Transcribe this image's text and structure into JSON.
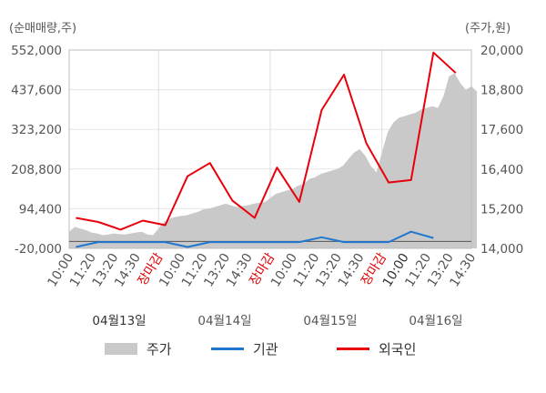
{
  "units": {
    "left": "(순매매량,주)",
    "right": "(주가,원)"
  },
  "chart_data": {
    "type": "line",
    "left_axis": {
      "ticks": [
        "552,000",
        "437,600",
        "323,200",
        "208,800",
        "94,400",
        "-20,000"
      ],
      "min": -20000,
      "max": 552000
    },
    "right_axis": {
      "ticks": [
        "20,000",
        "18,800",
        "17,600",
        "16,400",
        "15,200",
        "14,000"
      ],
      "min": 14000,
      "max": 20000
    },
    "x_ticks": [
      {
        "label": "10:00",
        "color": "#555555"
      },
      {
        "label": "11:20",
        "color": "#555555"
      },
      {
        "label": "13:20",
        "color": "#555555"
      },
      {
        "label": "14:30",
        "color": "#555555"
      },
      {
        "label": "장마감",
        "color": "#e00000"
      },
      {
        "label": "10:00",
        "color": "#555555"
      },
      {
        "label": "11:20",
        "color": "#555555"
      },
      {
        "label": "13:20",
        "color": "#555555"
      },
      {
        "label": "14:30",
        "color": "#555555"
      },
      {
        "label": "장마감",
        "color": "#e00000"
      },
      {
        "label": "10:00",
        "color": "#555555"
      },
      {
        "label": "11:20",
        "color": "#555555"
      },
      {
        "label": "13:20",
        "color": "#555555"
      },
      {
        "label": "14:30",
        "color": "#555555"
      },
      {
        "label": "장마감",
        "color": "#e00000"
      },
      {
        "label": "10:00",
        "color": "#333333"
      },
      {
        "label": "11:20",
        "color": "#555555"
      },
      {
        "label": "13:20",
        "color": "#555555"
      },
      {
        "label": "14:30",
        "color": "#555555"
      }
    ],
    "dates": [
      "04월13일",
      "04월14일",
      "04월15일",
      "04월16일"
    ],
    "session_breaks": [
      4,
      9,
      14
    ],
    "price_series": {
      "name": "주가",
      "values": [
        [
          0,
          14500
        ],
        [
          0.25,
          14650
        ],
        [
          0.5,
          14600
        ],
        [
          0.75,
          14550
        ],
        [
          1.0,
          14480
        ],
        [
          1.25,
          14450
        ],
        [
          1.5,
          14400
        ],
        [
          1.75,
          14420
        ],
        [
          2.0,
          14450
        ],
        [
          2.25,
          14430
        ],
        [
          2.5,
          14420
        ],
        [
          2.75,
          14450
        ],
        [
          3.0,
          14480
        ],
        [
          3.25,
          14500
        ],
        [
          3.5,
          14420
        ],
        [
          3.75,
          14400
        ],
        [
          4.25,
          14800
        ],
        [
          4.5,
          14900
        ],
        [
          4.75,
          14950
        ],
        [
          5.0,
          14980
        ],
        [
          5.25,
          15000
        ],
        [
          5.5,
          15050
        ],
        [
          5.75,
          15100
        ],
        [
          6.0,
          15180
        ],
        [
          6.25,
          15200
        ],
        [
          6.5,
          15250
        ],
        [
          6.75,
          15300
        ],
        [
          7.0,
          15350
        ],
        [
          7.25,
          15300
        ],
        [
          7.5,
          15250
        ],
        [
          7.75,
          15280
        ],
        [
          8.0,
          15300
        ],
        [
          8.25,
          15350
        ],
        [
          8.5,
          15380
        ],
        [
          8.75,
          15400
        ],
        [
          9.25,
          15650
        ],
        [
          9.5,
          15700
        ],
        [
          9.75,
          15750
        ],
        [
          10.0,
          15800
        ],
        [
          10.25,
          15900
        ],
        [
          10.5,
          15950
        ],
        [
          10.75,
          16100
        ],
        [
          11.0,
          16150
        ],
        [
          11.25,
          16250
        ],
        [
          11.5,
          16300
        ],
        [
          11.75,
          16350
        ],
        [
          12.0,
          16400
        ],
        [
          12.25,
          16500
        ],
        [
          12.5,
          16700
        ],
        [
          12.75,
          16900
        ],
        [
          13.0,
          17000
        ],
        [
          13.25,
          16800
        ],
        [
          13.5,
          16500
        ],
        [
          13.75,
          16300
        ],
        [
          14.25,
          17500
        ],
        [
          14.5,
          17800
        ],
        [
          14.75,
          17950
        ],
        [
          15.0,
          18000
        ],
        [
          15.25,
          18050
        ],
        [
          15.5,
          18100
        ],
        [
          15.75,
          18200
        ],
        [
          16.0,
          18250
        ],
        [
          16.25,
          18300
        ],
        [
          16.5,
          18250
        ],
        [
          16.75,
          18600
        ],
        [
          17.0,
          19200
        ],
        [
          17.25,
          19300
        ],
        [
          17.5,
          19000
        ],
        [
          17.75,
          18800
        ],
        [
          18.0,
          18900
        ],
        [
          18.25,
          18750
        ]
      ]
    },
    "series": [
      {
        "name": "기관",
        "color": "#1f77d0",
        "values": [
          [
            0.3,
            -16000
          ],
          [
            1.3,
            -2000
          ],
          [
            2.3,
            -2000
          ],
          [
            3.3,
            -2000
          ],
          [
            4.3,
            -2000
          ],
          [
            5.3,
            -16000
          ],
          [
            6.3,
            -2000
          ],
          [
            7.3,
            -2000
          ],
          [
            8.3,
            -2000
          ],
          [
            9.3,
            -2000
          ],
          [
            10.3,
            -2000
          ],
          [
            11.3,
            12000
          ],
          [
            12.3,
            -2000
          ],
          [
            13.3,
            -2000
          ],
          [
            14.3,
            -2000
          ],
          [
            15.3,
            28000
          ],
          [
            16.3,
            10000
          ]
        ]
      },
      {
        "name": "외국인",
        "color": "#e8000b",
        "values": [
          [
            0.3,
            68000
          ],
          [
            1.3,
            56000
          ],
          [
            2.3,
            34000
          ],
          [
            3.3,
            60000
          ],
          [
            4.3,
            47000
          ],
          [
            5.3,
            188000
          ],
          [
            6.3,
            226000
          ],
          [
            7.3,
            118000
          ],
          [
            8.3,
            68000
          ],
          [
            9.3,
            213000
          ],
          [
            10.3,
            114000
          ],
          [
            11.3,
            379000
          ],
          [
            12.3,
            481000
          ],
          [
            13.3,
            283000
          ],
          [
            14.3,
            170000
          ],
          [
            15.3,
            177000
          ],
          [
            16.3,
            545000
          ],
          [
            17.3,
            486000
          ]
        ]
      }
    ]
  },
  "legend": [
    {
      "label": "주가",
      "kind": "area",
      "color": "#c9c9c9"
    },
    {
      "label": "기관",
      "kind": "line",
      "color": "#1f77d0"
    },
    {
      "label": "외국인",
      "kind": "line",
      "color": "#e8000b"
    }
  ]
}
